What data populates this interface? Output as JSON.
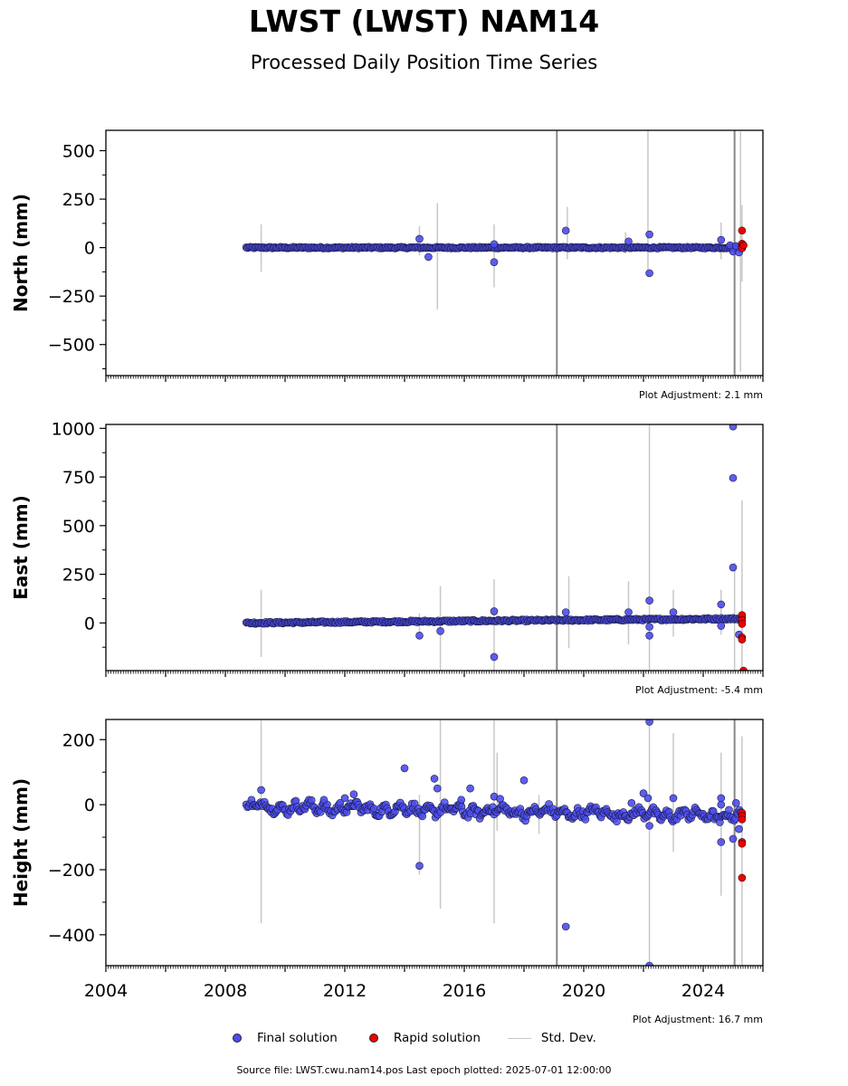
{
  "title": "LWST (LWST) NAM14",
  "subtitle": "Processed Daily Position Time Series",
  "legend": {
    "final": "Final solution",
    "rapid": "Rapid solution",
    "std": "Std. Dev."
  },
  "footer": "Source file: LWST.cwu.nam14.pos  Last epoch plotted: 2025-07-01 12:00:00",
  "colors": {
    "final": "#4b4cf0",
    "rapid": "#ee0000",
    "std": "#c8c8c8",
    "stdDark": "#888888"
  },
  "chart_data": [
    {
      "type": "scatter",
      "ylabel": "North (mm)",
      "ylim": [
        -660,
        605
      ],
      "yticks": [
        500,
        250,
        0,
        -250,
        -500
      ],
      "ytick_labels": [
        "500",
        "250",
        "0",
        "−250",
        "−500"
      ],
      "xlim": [
        2004,
        2026
      ],
      "adjustment": "Plot Adjustment: 2.1 mm",
      "band": {
        "start": 2008.7,
        "end": 2025.3,
        "y_start": 0,
        "y_end": 0,
        "halfwidth": 4
      },
      "final_outliers": [
        [
          2014.5,
          45
        ],
        [
          2014.8,
          -48
        ],
        [
          2017.0,
          18
        ],
        [
          2017.0,
          -75
        ],
        [
          2019.4,
          88
        ],
        [
          2021.5,
          32
        ],
        [
          2022.2,
          68
        ],
        [
          2022.2,
          -132
        ],
        [
          2024.6,
          40
        ],
        [
          2024.9,
          12
        ],
        [
          2025.0,
          -20
        ],
        [
          2025.1,
          8
        ],
        [
          2025.2,
          -25
        ]
      ],
      "rapid_points": [
        [
          2025.3,
          88
        ],
        [
          2025.3,
          20
        ],
        [
          2025.3,
          5
        ],
        [
          2025.3,
          -3
        ],
        [
          2025.35,
          12
        ]
      ],
      "std_bars": [
        [
          2009.2,
          -125,
          120
        ],
        [
          2014.5,
          -40,
          110
        ],
        [
          2015.1,
          -320,
          230
        ],
        [
          2017.0,
          -205,
          120
        ],
        [
          2019.1,
          -660,
          605
        ],
        [
          2019.45,
          -60,
          210
        ],
        [
          2021.4,
          -30,
          80
        ],
        [
          2022.15,
          -150,
          605
        ],
        [
          2024.6,
          -60,
          130
        ],
        [
          2025.05,
          -660,
          605
        ],
        [
          2025.25,
          -640,
          600
        ],
        [
          2025.3,
          -175,
          220
        ]
      ]
    },
    {
      "type": "scatter",
      "ylabel": "East (mm)",
      "ylim": [
        -245,
        1020
      ],
      "yticks": [
        1000,
        750,
        500,
        250,
        0
      ],
      "ytick_labels": [
        "1000",
        "750",
        "500",
        "250",
        "0"
      ],
      "xlim": [
        2004,
        2026
      ],
      "adjustment": "Plot Adjustment: -5.4 mm",
      "band": {
        "start": 2008.7,
        "end": 2025.3,
        "y_start": 0,
        "y_end": 22,
        "halfwidth": 5
      },
      "final_outliers": [
        [
          2014.5,
          -65
        ],
        [
          2015.2,
          -42
        ],
        [
          2017.0,
          60
        ],
        [
          2017.0,
          -175
        ],
        [
          2019.4,
          55
        ],
        [
          2021.5,
          55
        ],
        [
          2022.2,
          115
        ],
        [
          2022.2,
          -20
        ],
        [
          2022.2,
          -65
        ],
        [
          2023.0,
          55
        ],
        [
          2024.6,
          95
        ],
        [
          2024.6,
          -15
        ],
        [
          2025.0,
          1010
        ],
        [
          2025.0,
          745
        ],
        [
          2025.0,
          285
        ],
        [
          2025.2,
          -60
        ]
      ],
      "rapid_points": [
        [
          2025.3,
          40
        ],
        [
          2025.3,
          15
        ],
        [
          2025.3,
          -5
        ],
        [
          2025.3,
          -75
        ],
        [
          2025.3,
          -85
        ],
        [
          2025.35,
          -245
        ]
      ],
      "std_bars": [
        [
          2009.2,
          -175,
          170
        ],
        [
          2014.5,
          -60,
          50
        ],
        [
          2015.2,
          -245,
          190
        ],
        [
          2017.0,
          -245,
          225
        ],
        [
          2019.1,
          -245,
          1020
        ],
        [
          2019.5,
          -130,
          240
        ],
        [
          2021.5,
          -110,
          215
        ],
        [
          2022.2,
          -245,
          1020
        ],
        [
          2023.0,
          -70,
          170
        ],
        [
          2024.6,
          -60,
          170
        ],
        [
          2025.05,
          -245,
          310
        ],
        [
          2025.3,
          -245,
          630
        ]
      ]
    },
    {
      "type": "scatter",
      "ylabel": "Height (mm)",
      "ylim": [
        -495,
        262
      ],
      "yticks": [
        200,
        0,
        -200,
        -400
      ],
      "ytick_labels": [
        "200",
        "0",
        "−200",
        "−400"
      ],
      "xlim": [
        2004,
        2026
      ],
      "xticks": [
        2004,
        2008,
        2012,
        2016,
        2020,
        2024
      ],
      "xtick_labels": [
        "2004",
        "2008",
        "2012",
        "2016",
        "2020",
        "2024"
      ],
      "adjustment": "Plot Adjustment: 16.7 mm",
      "band": {
        "start": 2008.7,
        "end": 2025.3,
        "y_start": -5,
        "y_end": -35,
        "halfwidth": 12
      },
      "final_outliers": [
        [
          2009.2,
          45
        ],
        [
          2011.3,
          15
        ],
        [
          2012.0,
          20
        ],
        [
          2012.3,
          32
        ],
        [
          2014.0,
          112
        ],
        [
          2014.5,
          -188
        ],
        [
          2015.0,
          80
        ],
        [
          2015.1,
          50
        ],
        [
          2015.9,
          15
        ],
        [
          2016.2,
          50
        ],
        [
          2017.0,
          25
        ],
        [
          2017.2,
          18
        ],
        [
          2018.0,
          75
        ],
        [
          2019.4,
          -375
        ],
        [
          2021.6,
          5
        ],
        [
          2022.0,
          35
        ],
        [
          2022.15,
          20
        ],
        [
          2022.2,
          -65
        ],
        [
          2022.2,
          255
        ],
        [
          2022.2,
          -495
        ],
        [
          2023.0,
          20
        ],
        [
          2024.6,
          20
        ],
        [
          2024.6,
          0
        ],
        [
          2024.6,
          -115
        ],
        [
          2025.0,
          -105
        ],
        [
          2025.1,
          5
        ],
        [
          2025.2,
          -75
        ]
      ],
      "rapid_points": [
        [
          2025.3,
          -25
        ],
        [
          2025.3,
          -35
        ],
        [
          2025.3,
          -45
        ],
        [
          2025.3,
          -115
        ],
        [
          2025.3,
          -120
        ],
        [
          2025.3,
          -225
        ]
      ],
      "std_bars": [
        [
          2009.2,
          -365,
          262
        ],
        [
          2014.5,
          -215,
          30
        ],
        [
          2015.2,
          -320,
          262
        ],
        [
          2017.0,
          -365,
          262
        ],
        [
          2017.1,
          -80,
          160
        ],
        [
          2018.5,
          -90,
          30
        ],
        [
          2019.1,
          -495,
          262
        ],
        [
          2022.2,
          -495,
          262
        ],
        [
          2023.0,
          -145,
          220
        ],
        [
          2024.6,
          -280,
          160
        ],
        [
          2025.05,
          -495,
          262
        ],
        [
          2025.3,
          -495,
          210
        ]
      ]
    }
  ]
}
